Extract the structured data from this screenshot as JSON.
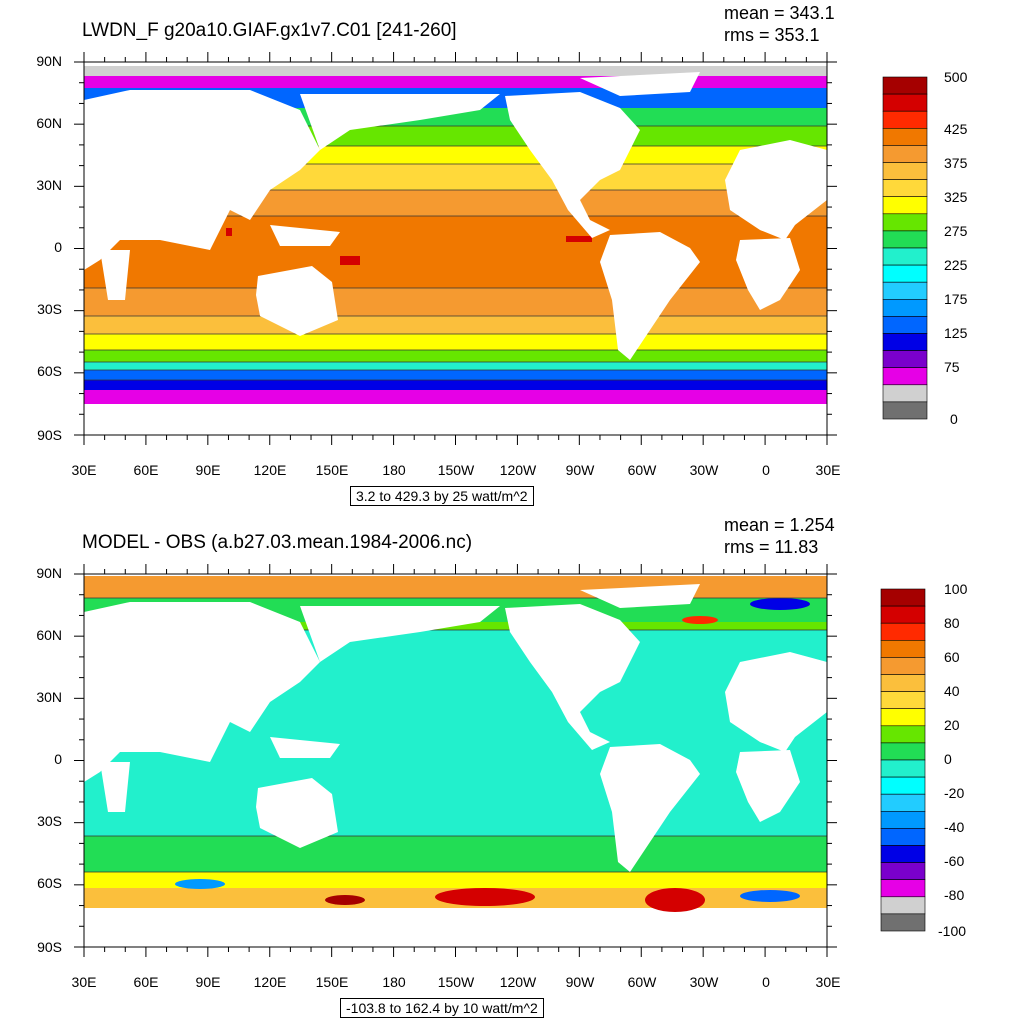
{
  "top": {
    "title": "LWDN_F g20a10.GIAF.gx1v7.C01 [241-260]",
    "mean": "mean = 343.1",
    "rms": "rms = 353.1",
    "range": "3.2 to 429.3 by 25 watt/m^2",
    "colorbar_labels": [
      "500",
      "425",
      "375",
      "325",
      "275",
      "225",
      "175",
      "125",
      "75",
      "0"
    ],
    "colors": [
      "#a50000",
      "#d40000",
      "#ff2a00",
      "#f07800",
      "#f59a30",
      "#fbbf3c",
      "#ffd93a",
      "#ffff00",
      "#66e600",
      "#22dd55",
      "#22f0cc",
      "#00ffff",
      "#22ccff",
      "#0099ff",
      "#0066ff",
      "#0000e6",
      "#7a00cc",
      "#e600e6",
      "#d0d0d0",
      "#707070"
    ]
  },
  "bottom": {
    "title": "MODEL - OBS (a.b27.03.mean.1984-2006.nc)",
    "mean": "mean = 1.254",
    "rms": "rms = 11.83",
    "range": "-103.8 to 162.4 by 10 watt/m^2",
    "colorbar_labels": [
      "100",
      "80",
      "60",
      "40",
      "20",
      "0",
      "-20",
      "-40",
      "-60",
      "-80",
      "-100"
    ],
    "colors": [
      "#a50000",
      "#d40000",
      "#ff2a00",
      "#f07800",
      "#f59a30",
      "#fbbf3c",
      "#ffd93a",
      "#ffff00",
      "#66e600",
      "#22dd55",
      "#22f0cc",
      "#00ffff",
      "#22ccff",
      "#0099ff",
      "#0066ff",
      "#0000e6",
      "#7a00cc",
      "#e600e6",
      "#d0d0d0",
      "#707070"
    ]
  },
  "axes": {
    "lat_labels": [
      "90N",
      "60N",
      "30N",
      "0",
      "30S",
      "60S",
      "90S"
    ],
    "lon_labels": [
      "30E",
      "60E",
      "90E",
      "120E",
      "150E",
      "180",
      "150W",
      "120W",
      "90W",
      "60W",
      "30W",
      "0",
      "30E"
    ]
  }
}
